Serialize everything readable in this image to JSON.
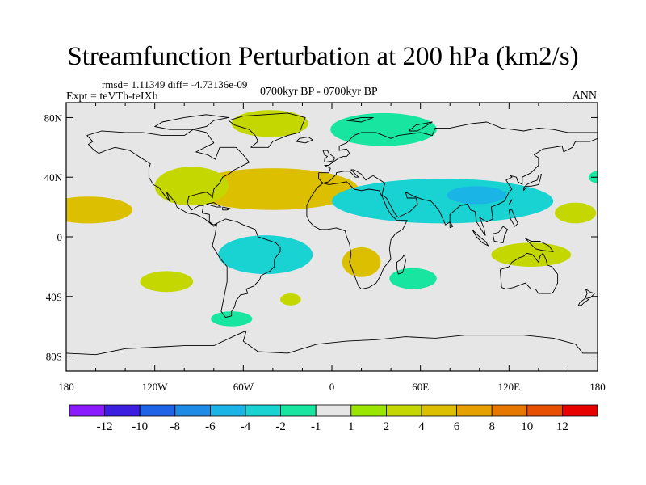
{
  "title": "Streamfunction Perturbation at 200 hPa (km2/s)",
  "stats": "rmsd= 1.11349 diff= -4.73136e-09",
  "experiment": "Expt = teVTh-teIXh",
  "period": "0700kyr BP - 0700kyr BP",
  "season": "ANN",
  "map": {
    "projection": "cylindrical-equidistant",
    "lon_range": [
      -180,
      180
    ],
    "lat_range": [
      -90,
      90
    ],
    "lat_ticks": [
      {
        "value": 80,
        "label": "80N"
      },
      {
        "value": 40,
        "label": "40N"
      },
      {
        "value": 0,
        "label": "0"
      },
      {
        "value": -40,
        "label": "40S"
      },
      {
        "value": -80,
        "label": "80S"
      }
    ],
    "lon_ticks": [
      {
        "value": -180,
        "label": "180"
      },
      {
        "value": -120,
        "label": "120W"
      },
      {
        "value": -60,
        "label": "60W"
      },
      {
        "value": 0,
        "label": "0"
      },
      {
        "value": 60,
        "label": "60E"
      },
      {
        "value": 120,
        "label": "120E"
      },
      {
        "value": 180,
        "label": "180"
      }
    ],
    "background_color": "#e6e6e6",
    "anomaly_regions": [
      {
        "name": "greenland-positive",
        "lon": -42,
        "lat": 76,
        "rx": 26,
        "ry": 9,
        "level": 2
      },
      {
        "name": "scandinavia-negative",
        "lon": 35,
        "lat": 72,
        "rx": 36,
        "ry": 11,
        "level": -2
      },
      {
        "name": "north-atlantic-positive",
        "lon": -40,
        "lat": 32,
        "rx": 58,
        "ry": 14,
        "level": 4
      },
      {
        "name": "central-america-positive",
        "lon": -95,
        "lat": 34,
        "rx": 25,
        "ry": 13,
        "level": 2
      },
      {
        "name": "east-pacific-positive",
        "lon": -165,
        "lat": 18,
        "rx": 30,
        "ry": 9,
        "level": 4
      },
      {
        "name": "asia-negative",
        "lon": 75,
        "lat": 24,
        "rx": 75,
        "ry": 15,
        "level": -4
      },
      {
        "name": "tibet-negative-core",
        "lon": 98,
        "lat": 28,
        "rx": 20,
        "ry": 6,
        "level": -6
      },
      {
        "name": "south-america-negative",
        "lon": -45,
        "lat": -12,
        "rx": 32,
        "ry": 13,
        "level": -4
      },
      {
        "name": "southern-africa-positive",
        "lon": 20,
        "lat": -17,
        "rx": 13,
        "ry": 10,
        "level": 4
      },
      {
        "name": "indian-ocean-negative",
        "lon": 55,
        "lat": -28,
        "rx": 16,
        "ry": 7,
        "level": -2
      },
      {
        "name": "australia-positive",
        "lon": 135,
        "lat": -12,
        "rx": 27,
        "ry": 8,
        "level": 2
      },
      {
        "name": "south-pacific-positive",
        "lon": -112,
        "lat": -30,
        "rx": 18,
        "ry": 7,
        "level": 2
      },
      {
        "name": "southern-ocean-negative",
        "lon": -68,
        "lat": -55,
        "rx": 14,
        "ry": 5,
        "level": -2
      },
      {
        "name": "patagonia-positive",
        "lon": -28,
        "lat": -42,
        "rx": 7,
        "ry": 4,
        "level": 2
      },
      {
        "name": "west-pacific-positive",
        "lon": 165,
        "lat": 16,
        "rx": 14,
        "ry": 7,
        "level": 2
      },
      {
        "name": "dateline-negative",
        "lon": 180,
        "lat": 40,
        "rx": 6,
        "ry": 4,
        "level": -2
      }
    ]
  },
  "colorbar": {
    "colors": [
      "#8c1aff",
      "#3c1ee0",
      "#1f64e6",
      "#1e8ce6",
      "#1ab4e6",
      "#19d2d2",
      "#18e6a0",
      "#e6e6e6",
      "#9be600",
      "#c4d700",
      "#dcc000",
      "#e6a000",
      "#e67800",
      "#e65000",
      "#e60000"
    ],
    "labels": [
      "-12",
      "-10",
      "-8",
      "-6",
      "-4",
      "-2",
      "-1",
      "1",
      "2",
      "4",
      "6",
      "8",
      "10",
      "12"
    ],
    "levels": [
      -12,
      -10,
      -8,
      -6,
      -4,
      -2,
      -1,
      1,
      2,
      4,
      6,
      8,
      10,
      12
    ]
  }
}
